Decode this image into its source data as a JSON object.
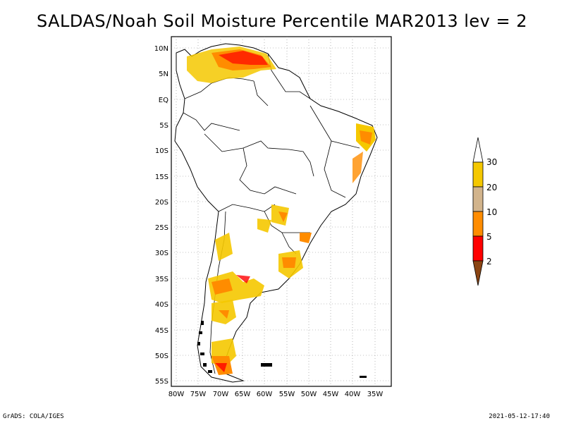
{
  "title": "SALDAS/Noah Soil Moisture Percentile MAR2013 lev = 2",
  "map": {
    "lat_labels": [
      "10N",
      "5N",
      "EQ",
      "5S",
      "10S",
      "15S",
      "20S",
      "25S",
      "30S",
      "35S",
      "40S",
      "45S",
      "50S",
      "55S"
    ],
    "lon_labels": [
      "80W",
      "75W",
      "70W",
      "65W",
      "60W",
      "55W",
      "50W",
      "45W",
      "40W",
      "35W"
    ],
    "ocean_color": "#ffffff",
    "land_color": "#ffffff",
    "boundary_color": "#000000",
    "grid": "dotted"
  },
  "legend": {
    "labels": [
      "30",
      "20",
      "10",
      "5",
      "2"
    ],
    "colors": [
      "#ffffff",
      "#f5c800",
      "#d2b48c",
      "#ff8c00",
      "#ff0000",
      "#8b4513"
    ]
  },
  "footer": {
    "left": "GrADS: COLA/IGES",
    "right": "2021-05-12-17:40"
  }
}
